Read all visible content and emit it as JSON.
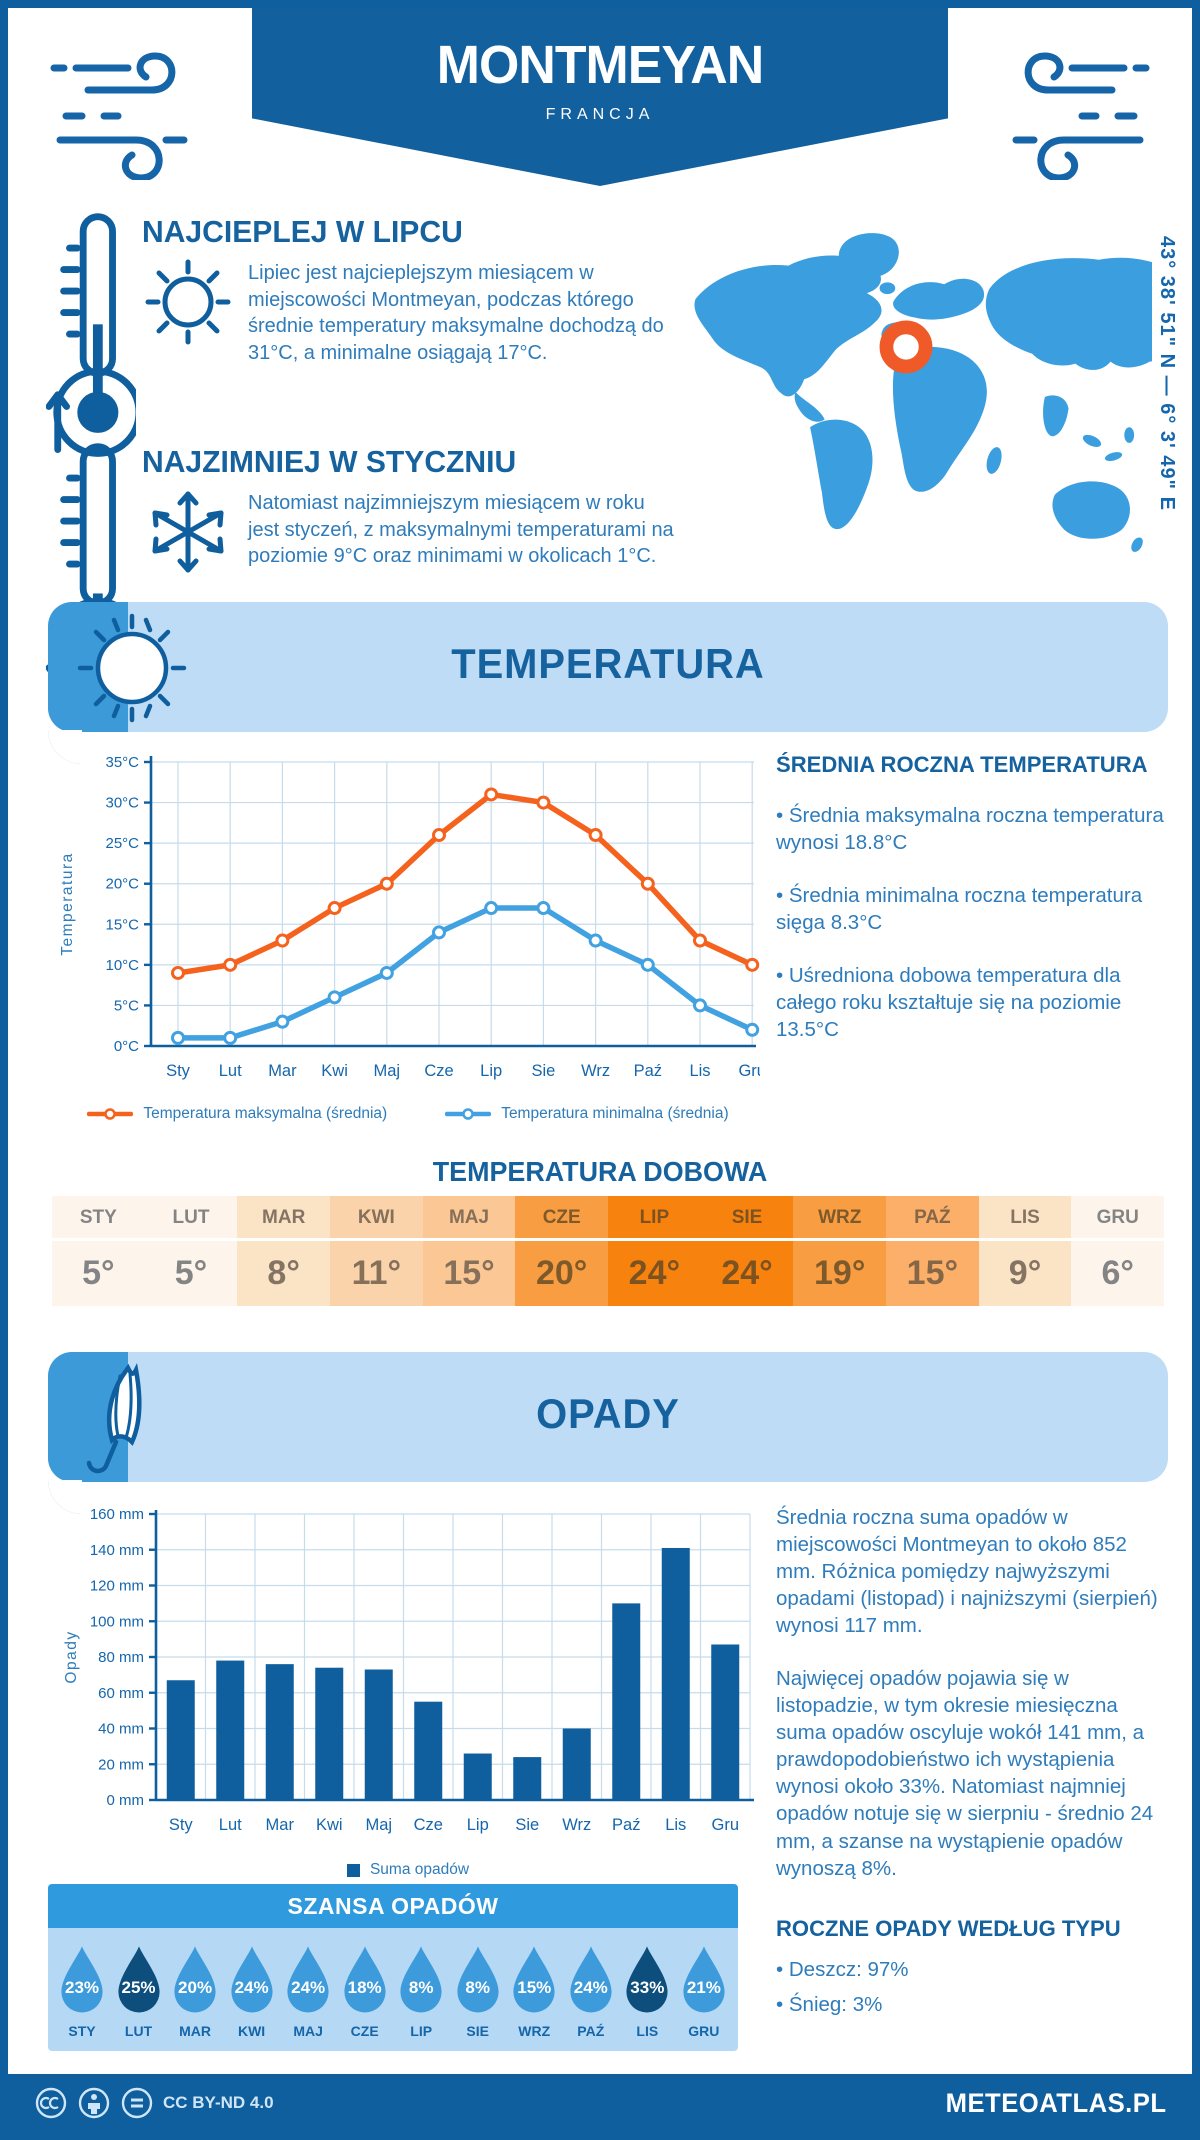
{
  "meta": {
    "license": "CC BY-ND 4.0",
    "brand": "METEOATLAS.PL"
  },
  "header": {
    "title": "MONTMEYAN",
    "subtitle": "FRANCJA",
    "coordinates": "43° 38' 51\" N — 6° 3' 49\" E"
  },
  "highlights": {
    "warm": {
      "title": "NAJCIEPLEJ W LIPCU",
      "text": "Lipiec jest najcieplejszym miesiącem w miejscowości Montmeyan, podczas którego średnie temperatury maksymalne dochodzą do 31°C, a minimalne osiągają 17°C."
    },
    "cold": {
      "title": "NAJZIMNIEJ W STYCZNIU",
      "text": "Natomiast najzimniejszym miesiącem w roku jest styczeń, z maksymalnymi temperaturami na poziomie 9°C oraz minimami w okolicach 1°C."
    }
  },
  "sections": {
    "temperature": "TEMPERATURA",
    "precipitation": "OPADY"
  },
  "chart_data": [
    {
      "type": "line",
      "ylabel": "Temperatura",
      "x": [
        "Sty",
        "Lut",
        "Mar",
        "Kwi",
        "Maj",
        "Cze",
        "Lip",
        "Sie",
        "Wrz",
        "Paź",
        "Lis",
        "Gru"
      ],
      "series": [
        {
          "name": "Temperatura maksymalna (średnia)",
          "color": "#f4621d",
          "values": [
            9,
            10,
            13,
            17,
            20,
            26,
            31,
            30,
            26,
            20,
            13,
            10
          ]
        },
        {
          "name": "Temperatura minimalna (średnia)",
          "color": "#41a1e1",
          "values": [
            1,
            1,
            3,
            6,
            9,
            14,
            17,
            17,
            13,
            10,
            5,
            2
          ]
        }
      ],
      "ylim": [
        0,
        35
      ],
      "ytick_step": 5,
      "ytick_suffix": "°C",
      "grid": true,
      "legend_position": "bottom"
    },
    {
      "type": "bar",
      "ylabel": "Opady",
      "categories": [
        "Sty",
        "Lut",
        "Mar",
        "Kwi",
        "Maj",
        "Cze",
        "Lip",
        "Sie",
        "Wrz",
        "Paź",
        "Lis",
        "Gru"
      ],
      "values": [
        67,
        78,
        76,
        74,
        73,
        55,
        26,
        24,
        40,
        110,
        141,
        87
      ],
      "ylim": [
        0,
        160
      ],
      "ytick_step": 20,
      "ytick_suffix": " mm",
      "legend": "Suma opadów",
      "grid": true,
      "legend_position": "bottom"
    }
  ],
  "annual_temperature": {
    "heading": "ŚREDNIA ROCZNA TEMPERATURA",
    "bullets": [
      "• Średnia maksymalna roczna temperatura wynosi 18.8°C",
      "• Średnia minimalna roczna temperatura sięga 8.3°C",
      "• Uśredniona dobowa temperatura dla całego roku kształtuje się na poziomie 13.5°C"
    ]
  },
  "daily_temperature": {
    "heading": "TEMPERATURA DOBOWA",
    "months": [
      "STY",
      "LUT",
      "MAR",
      "KWI",
      "MAJ",
      "CZE",
      "LIP",
      "SIE",
      "WRZ",
      "PAŹ",
      "LIS",
      "GRU"
    ],
    "values": [
      "5°",
      "5°",
      "8°",
      "11°",
      "15°",
      "20°",
      "24°",
      "24°",
      "19°",
      "15°",
      "9°",
      "6°"
    ],
    "cell_colors": [
      "#fdf5eb",
      "#fdf5eb",
      "#fbe3c6",
      "#fbd3ab",
      "#fbc795",
      "#f99d43",
      "#f8820e",
      "#f8820e",
      "#f99d43",
      "#fbaf68",
      "#fbe3c6",
      "#fdf5eb"
    ],
    "text_colors": [
      "#848484",
      "#848484",
      "#857463",
      "#86705a",
      "#867059",
      "#7e5a2b",
      "#7c5220",
      "#7c5220",
      "#7e5a2b",
      "#856748",
      "#857463",
      "#848484"
    ]
  },
  "precipitation_text": {
    "p1": "Średnia roczna suma opadów w miejscowości Montmeyan to około 852 mm. Różnica pomiędzy najwyższymi opadami (listopad) i najniższymi (sierpień) wynosi 117 mm.",
    "p2": "Najwięcej opadów pojawia się w listopadzie, w tym okresie miesięczna suma opadów oscyluje wokół 141 mm, a prawdopodobieństwo ich wystąpienia wynosi około 33%. Natomiast najmniej opadów notuje się w sierpniu - średnio 24 mm, a szanse na wystąpienie opadów wynoszą 8%."
  },
  "rain_chance": {
    "heading": "SZANSA OPADÓW",
    "months": [
      "STY",
      "LUT",
      "MAR",
      "KWI",
      "MAJ",
      "CZE",
      "LIP",
      "SIE",
      "WRZ",
      "PAŹ",
      "LIS",
      "GRU"
    ],
    "values": [
      "23%",
      "25%",
      "20%",
      "24%",
      "24%",
      "18%",
      "8%",
      "8%",
      "15%",
      "24%",
      "33%",
      "21%"
    ],
    "drop_colors": [
      "#3e9bdb",
      "#0d4e7d",
      "#3e9bdb",
      "#3e9bdb",
      "#3e9bdb",
      "#3e9bdb",
      "#3e9bdb",
      "#3e9bdb",
      "#3e9bdb",
      "#3e9bdb",
      "#0d4e7d",
      "#3e9bdb"
    ]
  },
  "precipitation_types": {
    "heading": "ROCZNE OPADY WEDŁUG TYPU",
    "bullets": [
      "• Deszcz: 97%",
      "• Śnieg: 3%"
    ]
  },
  "colors": {
    "primary": "#0f5e9d",
    "heading": "#15629f",
    "body": "#2e7cbb",
    "grid": "#c6dbeb",
    "tick": "#1566ac",
    "map": "#3b9edf",
    "marker": "#f05a28",
    "band_bg": "#bedcf6",
    "band_stripe": "#3d9ad8"
  }
}
